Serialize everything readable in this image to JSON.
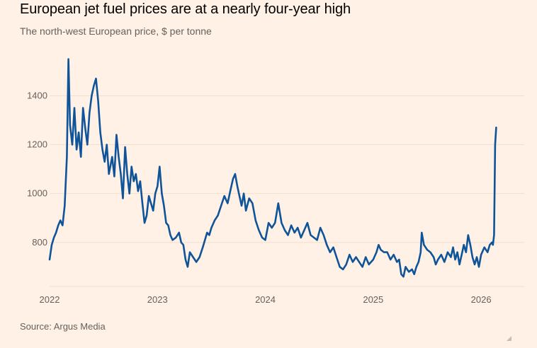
{
  "header": {
    "title": "European jet fuel prices are at a nearly four-year high",
    "subtitle": "The north-west European price, $ per tonne"
  },
  "footer": {
    "source": "Source: Argus Media"
  },
  "colors": {
    "background": "#fff1e5",
    "line": "#0f5499",
    "grid": "#f2dfce",
    "axis": "#66605c"
  },
  "chart_data": {
    "type": "line",
    "title": "European jet fuel prices are at a nearly four-year high",
    "subtitle": "The north-west European price, $ per tonne",
    "xlabel": "",
    "ylabel": "",
    "x_unit": "year (decimal)",
    "xlim": [
      2022.0,
      2026.4
    ],
    "ylim": [
      620,
      1560
    ],
    "yticks": [
      800,
      1000,
      1200,
      1400
    ],
    "xticks": [
      {
        "value": 2022,
        "label": "2022"
      },
      {
        "value": 2023,
        "label": "2023"
      },
      {
        "value": 2024,
        "label": "2024"
      },
      {
        "value": 2025,
        "label": "2025"
      },
      {
        "value": 2026,
        "label": "2026"
      }
    ],
    "grid": true,
    "legend": "none",
    "series": [
      {
        "name": "North-west European jet fuel price",
        "points": [
          [
            2022.0,
            730
          ],
          [
            2022.02,
            790
          ],
          [
            2022.04,
            820
          ],
          [
            2022.06,
            840
          ],
          [
            2022.08,
            870
          ],
          [
            2022.1,
            890
          ],
          [
            2022.12,
            870
          ],
          [
            2022.14,
            950
          ],
          [
            2022.16,
            1150
          ],
          [
            2022.175,
            1550
          ],
          [
            2022.19,
            1280
          ],
          [
            2022.21,
            1200
          ],
          [
            2022.23,
            1350
          ],
          [
            2022.25,
            1180
          ],
          [
            2022.27,
            1250
          ],
          [
            2022.29,
            1150
          ],
          [
            2022.31,
            1350
          ],
          [
            2022.33,
            1270
          ],
          [
            2022.35,
            1200
          ],
          [
            2022.37,
            1330
          ],
          [
            2022.39,
            1400
          ],
          [
            2022.41,
            1440
          ],
          [
            2022.43,
            1470
          ],
          [
            2022.45,
            1380
          ],
          [
            2022.47,
            1250
          ],
          [
            2022.49,
            1180
          ],
          [
            2022.51,
            1130
          ],
          [
            2022.53,
            1200
          ],
          [
            2022.55,
            1080
          ],
          [
            2022.58,
            1150
          ],
          [
            2022.6,
            1070
          ],
          [
            2022.62,
            1240
          ],
          [
            2022.64,
            1150
          ],
          [
            2022.66,
            1080
          ],
          [
            2022.68,
            980
          ],
          [
            2022.7,
            1190
          ],
          [
            2022.72,
            1080
          ],
          [
            2022.74,
            1000
          ],
          [
            2022.76,
            1110
          ],
          [
            2022.78,
            1050
          ],
          [
            2022.8,
            1080
          ],
          [
            2022.82,
            1010
          ],
          [
            2022.84,
            1050
          ],
          [
            2022.86,
            960
          ],
          [
            2022.88,
            880
          ],
          [
            2022.9,
            910
          ],
          [
            2022.92,
            990
          ],
          [
            2022.94,
            960
          ],
          [
            2022.96,
            930
          ],
          [
            2022.98,
            1000
          ],
          [
            2023.0,
            1030
          ],
          [
            2023.02,
            1110
          ],
          [
            2023.04,
            1000
          ],
          [
            2023.06,
            950
          ],
          [
            2023.08,
            880
          ],
          [
            2023.1,
            870
          ],
          [
            2023.12,
            830
          ],
          [
            2023.14,
            810
          ],
          [
            2023.17,
            820
          ],
          [
            2023.2,
            840
          ],
          [
            2023.22,
            800
          ],
          [
            2023.24,
            790
          ],
          [
            2023.26,
            730
          ],
          [
            2023.28,
            700
          ],
          [
            2023.3,
            760
          ],
          [
            2023.33,
            740
          ],
          [
            2023.36,
            720
          ],
          [
            2023.39,
            740
          ],
          [
            2023.42,
            780
          ],
          [
            2023.44,
            810
          ],
          [
            2023.46,
            840
          ],
          [
            2023.48,
            830
          ],
          [
            2023.5,
            860
          ],
          [
            2023.53,
            890
          ],
          [
            2023.56,
            910
          ],
          [
            2023.59,
            950
          ],
          [
            2023.62,
            990
          ],
          [
            2023.65,
            960
          ],
          [
            2023.68,
            1020
          ],
          [
            2023.7,
            1060
          ],
          [
            2023.72,
            1080
          ],
          [
            2023.74,
            1030
          ],
          [
            2023.76,
            990
          ],
          [
            2023.78,
            950
          ],
          [
            2023.8,
            1000
          ],
          [
            2023.82,
            930
          ],
          [
            2023.85,
            980
          ],
          [
            2023.88,
            960
          ],
          [
            2023.91,
            890
          ],
          [
            2023.94,
            850
          ],
          [
            2023.97,
            820
          ],
          [
            2024.0,
            810
          ],
          [
            2024.03,
            880
          ],
          [
            2024.06,
            860
          ],
          [
            2024.09,
            880
          ],
          [
            2024.12,
            960
          ],
          [
            2024.15,
            880
          ],
          [
            2024.18,
            850
          ],
          [
            2024.21,
            830
          ],
          [
            2024.24,
            870
          ],
          [
            2024.27,
            840
          ],
          [
            2024.3,
            860
          ],
          [
            2024.33,
            820
          ],
          [
            2024.36,
            850
          ],
          [
            2024.39,
            880
          ],
          [
            2024.42,
            830
          ],
          [
            2024.45,
            820
          ],
          [
            2024.48,
            810
          ],
          [
            2024.51,
            860
          ],
          [
            2024.54,
            830
          ],
          [
            2024.57,
            790
          ],
          [
            2024.6,
            760
          ],
          [
            2024.63,
            780
          ],
          [
            2024.66,
            740
          ],
          [
            2024.69,
            700
          ],
          [
            2024.72,
            690
          ],
          [
            2024.75,
            710
          ],
          [
            2024.78,
            750
          ],
          [
            2024.81,
            720
          ],
          [
            2024.84,
            740
          ],
          [
            2024.87,
            720
          ],
          [
            2024.9,
            700
          ],
          [
            2024.93,
            740
          ],
          [
            2024.96,
            710
          ],
          [
            2025.0,
            730
          ],
          [
            2025.03,
            760
          ],
          [
            2025.05,
            790
          ],
          [
            2025.07,
            770
          ],
          [
            2025.1,
            760
          ],
          [
            2025.13,
            760
          ],
          [
            2025.16,
            730
          ],
          [
            2025.19,
            750
          ],
          [
            2025.22,
            720
          ],
          [
            2025.24,
            730
          ],
          [
            2025.26,
            670
          ],
          [
            2025.28,
            660
          ],
          [
            2025.3,
            700
          ],
          [
            2025.33,
            680
          ],
          [
            2025.36,
            690
          ],
          [
            2025.38,
            670
          ],
          [
            2025.4,
            700
          ],
          [
            2025.42,
            720
          ],
          [
            2025.44,
            760
          ],
          [
            2025.45,
            840
          ],
          [
            2025.47,
            790
          ],
          [
            2025.5,
            770
          ],
          [
            2025.53,
            760
          ],
          [
            2025.56,
            740
          ],
          [
            2025.58,
            710
          ],
          [
            2025.6,
            730
          ],
          [
            2025.63,
            750
          ],
          [
            2025.66,
            720
          ],
          [
            2025.69,
            760
          ],
          [
            2025.72,
            740
          ],
          [
            2025.74,
            780
          ],
          [
            2025.76,
            730
          ],
          [
            2025.78,
            760
          ],
          [
            2025.8,
            710
          ],
          [
            2025.82,
            750
          ],
          [
            2025.84,
            790
          ],
          [
            2025.86,
            760
          ],
          [
            2025.88,
            830
          ],
          [
            2025.9,
            790
          ],
          [
            2025.92,
            740
          ],
          [
            2025.94,
            710
          ],
          [
            2025.96,
            740
          ],
          [
            2025.98,
            700
          ],
          [
            2026.0,
            750
          ],
          [
            2026.03,
            780
          ],
          [
            2026.06,
            760
          ],
          [
            2026.08,
            790
          ],
          [
            2026.1,
            800
          ],
          [
            2026.11,
            790
          ],
          [
            2026.12,
            830
          ],
          [
            2026.125,
            1000
          ],
          [
            2026.13,
            1200
          ],
          [
            2026.14,
            1270
          ]
        ]
      }
    ]
  }
}
